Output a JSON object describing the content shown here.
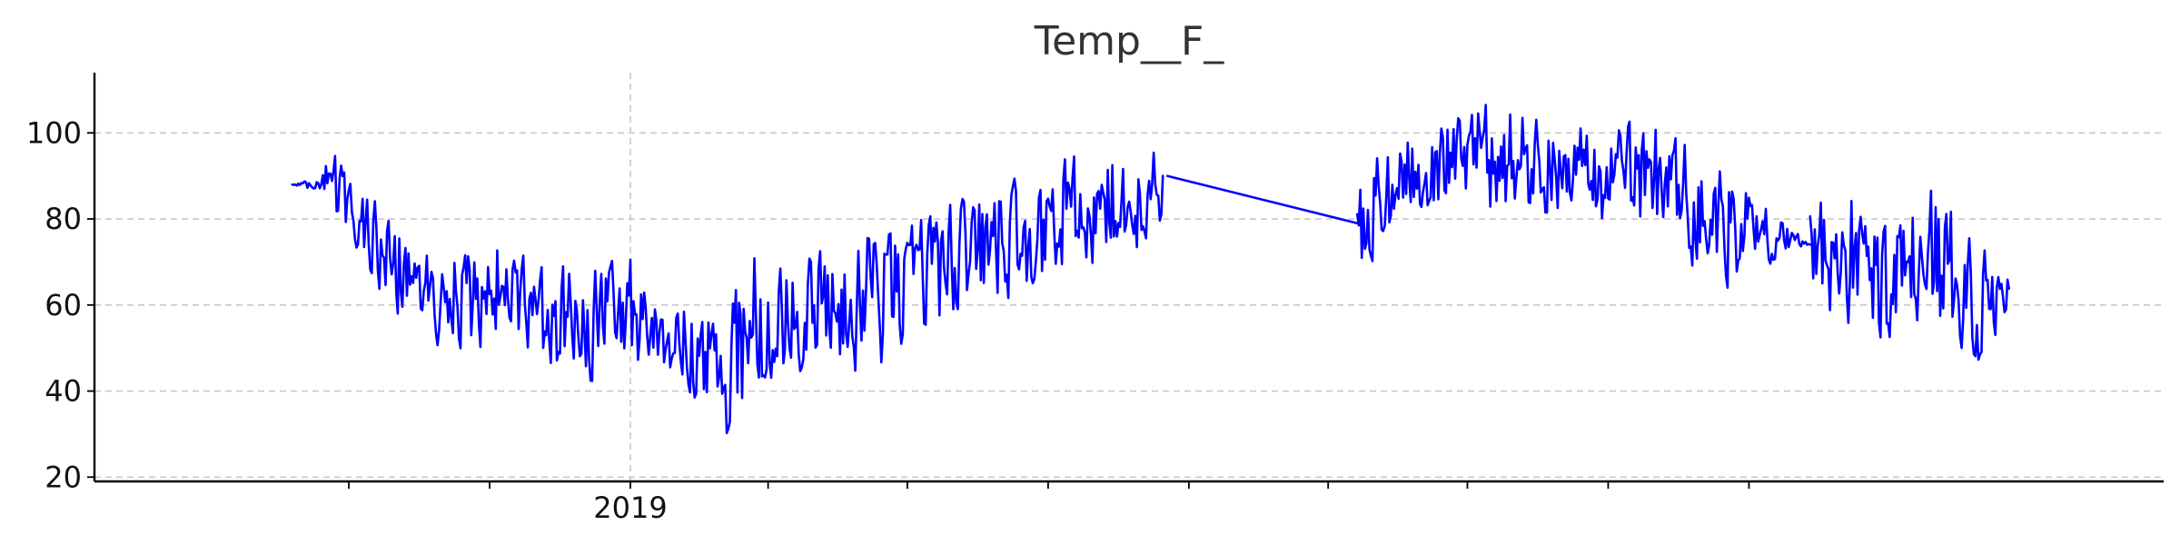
{
  "chart_data": {
    "type": "line",
    "title": "Temp__F_",
    "xlabel": "",
    "ylabel": "",
    "x_range": [
      "2018-04-20",
      "2020-11-25"
    ],
    "x_ticks": [
      {
        "date": "2018-07-01",
        "label": ""
      },
      {
        "date": "2018-10-01",
        "label": ""
      },
      {
        "date": "2019-01-01",
        "label": "2019"
      },
      {
        "date": "2019-04-01",
        "label": ""
      },
      {
        "date": "2019-07-01",
        "label": ""
      },
      {
        "date": "2019-10-01",
        "label": ""
      },
      {
        "date": "2020-01-01",
        "label": ""
      },
      {
        "date": "2020-04-01",
        "label": ""
      },
      {
        "date": "2020-07-01",
        "label": ""
      },
      {
        "date": "2020-10-01",
        "label": ""
      },
      {
        "date": "2021-01-01",
        "label": ""
      }
    ],
    "ylim": [
      19,
      114
    ],
    "y_ticks": [
      20,
      40,
      60,
      80,
      100
    ],
    "grid": true,
    "series": [
      {
        "color": "#0000ff",
        "segments": [
          {
            "start": "2018-05-25",
            "end": "2019-12-15",
            "anchors": [
              {
                "date": "2018-05-25",
                "low": 88,
                "high": 88
              },
              {
                "date": "2018-06-10",
                "low": 86,
                "high": 90
              },
              {
                "date": "2018-06-20",
                "low": 78,
                "high": 98
              },
              {
                "date": "2018-07-05",
                "low": 72,
                "high": 88
              },
              {
                "date": "2018-07-25",
                "low": 58,
                "high": 85
              },
              {
                "date": "2018-08-15",
                "low": 52,
                "high": 80
              },
              {
                "date": "2018-09-10",
                "low": 46,
                "high": 76
              },
              {
                "date": "2018-10-10",
                "low": 48,
                "high": 80
              },
              {
                "date": "2018-11-01",
                "low": 44,
                "high": 70
              },
              {
                "date": "2018-12-01",
                "low": 38,
                "high": 72
              },
              {
                "date": "2018-12-25",
                "low": 40,
                "high": 75
              },
              {
                "date": "2019-01-15",
                "low": 45,
                "high": 72
              },
              {
                "date": "2019-02-10",
                "low": 34,
                "high": 62
              },
              {
                "date": "2019-02-28",
                "low": 25,
                "high": 65
              },
              {
                "date": "2019-03-20",
                "low": 30,
                "high": 80
              },
              {
                "date": "2019-04-15",
                "low": 42,
                "high": 72
              },
              {
                "date": "2019-05-10",
                "low": 45,
                "high": 76
              },
              {
                "date": "2019-06-01",
                "low": 42,
                "high": 80
              },
              {
                "date": "2019-07-01",
                "low": 45,
                "high": 82
              },
              {
                "date": "2019-08-01",
                "low": 55,
                "high": 88
              },
              {
                "date": "2019-09-01",
                "low": 58,
                "high": 92
              },
              {
                "date": "2019-10-01",
                "low": 62,
                "high": 95
              },
              {
                "date": "2019-11-01",
                "low": 68,
                "high": 98
              },
              {
                "date": "2019-12-15",
                "low": 72,
                "high": 99
              }
            ]
          },
          {
            "start": "2019-12-18",
            "end": "2020-04-20",
            "anchors": [
              {
                "date": "2019-12-18",
                "low": 90,
                "high": 90
              },
              {
                "date": "2020-04-20",
                "low": 79,
                "high": 79
              }
            ]
          },
          {
            "start": "2020-04-20",
            "end": "2021-02-10",
            "anchors": [
              {
                "date": "2020-04-22",
                "low": 65,
                "high": 94
              },
              {
                "date": "2020-05-10",
                "low": 72,
                "high": 100
              },
              {
                "date": "2020-06-01",
                "low": 80,
                "high": 106
              },
              {
                "date": "2020-07-01",
                "low": 80,
                "high": 109
              },
              {
                "date": "2020-08-01",
                "low": 78,
                "high": 108
              },
              {
                "date": "2020-09-01",
                "low": 80,
                "high": 104
              },
              {
                "date": "2020-10-01",
                "low": 76,
                "high": 103
              },
              {
                "date": "2020-11-01",
                "low": 75,
                "high": 105
              },
              {
                "date": "2020-12-01",
                "low": 60,
                "high": 100
              },
              {
                "date": "2020-12-15",
                "low": 62,
                "high": 96
              },
              {
                "date": "2021-02-10",
                "low": 74,
                "high": 74
              }
            ]
          },
          {
            "start": "2021-02-10",
            "end": "2021-06-20",
            "anchors": [
              {
                "date": "2021-02-10",
                "low": 62,
                "high": 82
              },
              {
                "date": "2021-03-01",
                "low": 52,
                "high": 94
              },
              {
                "date": "2021-04-01",
                "low": 48,
                "high": 82
              },
              {
                "date": "2021-05-01",
                "low": 50,
                "high": 90
              },
              {
                "date": "2021-06-01",
                "low": 44,
                "high": 79
              },
              {
                "date": "2021-06-20",
                "low": 58,
                "high": 72
              }
            ]
          }
        ]
      }
    ]
  }
}
